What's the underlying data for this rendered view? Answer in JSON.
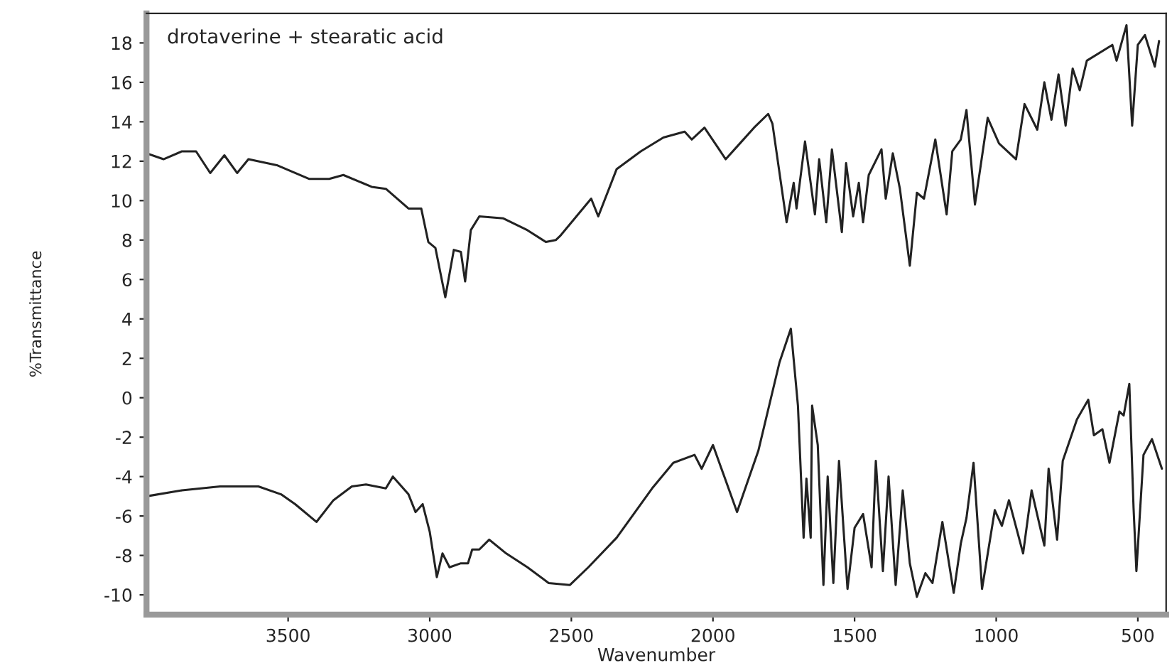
{
  "chart_data": {
    "type": "line",
    "annotations": [
      "drotaverine + stearatic acid"
    ],
    "xlabel": "Wavenumber",
    "ylabel": "%Transmittance",
    "xlim": [
      4000,
      400
    ],
    "xticks": [
      3500,
      3000,
      2500,
      2000,
      1500,
      1000,
      500
    ],
    "ylim": [
      -11,
      19.5
    ],
    "yticks": [
      -10,
      -8,
      -6,
      -4,
      -2,
      0,
      2,
      4,
      6,
      8,
      10,
      12,
      14,
      16,
      18
    ],
    "grid": false,
    "legend": false,
    "series": [
      {
        "color": "#222222",
        "x": [
          4000,
          3940,
          3875,
          3825,
          3775,
          3725,
          3680,
          3640,
          3540,
          3425,
          3355,
          3305,
          3205,
          3155,
          3075,
          3030,
          3005,
          2980,
          2945,
          2915,
          2890,
          2875,
          2855,
          2825,
          2740,
          2655,
          2590,
          2555,
          2540,
          2430,
          2405,
          2340,
          2255,
          2175,
          2100,
          2075,
          2030,
          1955,
          1905,
          1855,
          1805,
          1790,
          1740,
          1715,
          1705,
          1675,
          1640,
          1625,
          1600,
          1580,
          1545,
          1530,
          1505,
          1485,
          1470,
          1450,
          1405,
          1390,
          1365,
          1340,
          1305,
          1280,
          1255,
          1215,
          1175,
          1155,
          1125,
          1105,
          1075,
          1030,
          990,
          930,
          900,
          855,
          830,
          805,
          780,
          755,
          730,
          705,
          680,
          590,
          575,
          540,
          520,
          500,
          475,
          440,
          425
        ],
        "values": [
          12.4,
          12.1,
          12.5,
          12.5,
          11.4,
          12.3,
          11.4,
          12.1,
          11.8,
          11.1,
          11.1,
          11.3,
          10.7,
          10.6,
          9.6,
          9.6,
          7.9,
          7.6,
          5.1,
          7.5,
          7.4,
          5.9,
          8.5,
          9.2,
          9.1,
          8.5,
          7.9,
          8.0,
          8.2,
          10.1,
          9.2,
          11.6,
          12.5,
          13.2,
          13.5,
          13.1,
          13.7,
          12.1,
          12.9,
          13.7,
          14.4,
          13.9,
          8.9,
          10.9,
          9.6,
          13.0,
          9.3,
          12.1,
          8.9,
          12.6,
          8.4,
          11.9,
          9.2,
          10.9,
          8.9,
          11.3,
          12.6,
          10.1,
          12.4,
          10.6,
          6.7,
          10.4,
          10.1,
          13.1,
          9.3,
          12.5,
          13.1,
          14.6,
          9.8,
          14.2,
          12.9,
          12.1,
          14.9,
          13.6,
          16.0,
          14.1,
          16.4,
          13.8,
          16.7,
          15.6,
          17.1,
          17.9,
          17.1,
          18.9,
          13.8,
          17.9,
          18.4,
          16.8,
          18.1
        ]
      },
      {
        "color": "#222222",
        "x": [
          4000,
          3875,
          3740,
          3605,
          3525,
          3475,
          3400,
          3340,
          3275,
          3225,
          3155,
          3130,
          3075,
          3050,
          3025,
          3000,
          2975,
          2955,
          2930,
          2890,
          2865,
          2850,
          2825,
          2790,
          2730,
          2655,
          2580,
          2505,
          2440,
          2340,
          2215,
          2140,
          2065,
          2040,
          2000,
          1915,
          1840,
          1765,
          1725,
          1700,
          1680,
          1670,
          1655,
          1650,
          1630,
          1610,
          1595,
          1575,
          1555,
          1525,
          1500,
          1470,
          1440,
          1425,
          1400,
          1380,
          1355,
          1330,
          1305,
          1280,
          1250,
          1225,
          1190,
          1150,
          1125,
          1105,
          1080,
          1050,
          1005,
          980,
          955,
          905,
          875,
          830,
          815,
          785,
          765,
          715,
          675,
          655,
          625,
          600,
          565,
          550,
          530,
          515,
          505,
          480,
          450,
          415
        ],
        "values": [
          -5.0,
          -4.7,
          -4.5,
          -4.5,
          -4.9,
          -5.4,
          -6.3,
          -5.2,
          -4.5,
          -4.4,
          -4.6,
          -4.0,
          -4.9,
          -5.8,
          -5.4,
          -6.8,
          -9.1,
          -7.9,
          -8.6,
          -8.4,
          -8.4,
          -7.7,
          -7.7,
          -7.2,
          -7.9,
          -8.6,
          -9.4,
          -9.5,
          -8.6,
          -7.1,
          -4.6,
          -3.3,
          -2.9,
          -3.6,
          -2.4,
          -5.8,
          -2.7,
          1.8,
          3.5,
          -0.4,
          -7.1,
          -4.1,
          -7.1,
          -0.4,
          -2.4,
          -9.5,
          -4.0,
          -9.4,
          -3.2,
          -9.7,
          -6.6,
          -5.9,
          -8.6,
          -3.2,
          -8.8,
          -4.0,
          -9.5,
          -4.7,
          -8.4,
          -10.1,
          -8.9,
          -9.4,
          -6.3,
          -9.9,
          -7.4,
          -6.1,
          -3.3,
          -9.7,
          -5.7,
          -6.5,
          -5.2,
          -7.9,
          -4.7,
          -7.5,
          -3.6,
          -7.2,
          -3.2,
          -1.1,
          -0.1,
          -1.9,
          -1.6,
          -3.3,
          -0.7,
          -0.9,
          0.7,
          -5.6,
          -8.8,
          -2.9,
          -2.1,
          -3.6
        ]
      }
    ]
  }
}
